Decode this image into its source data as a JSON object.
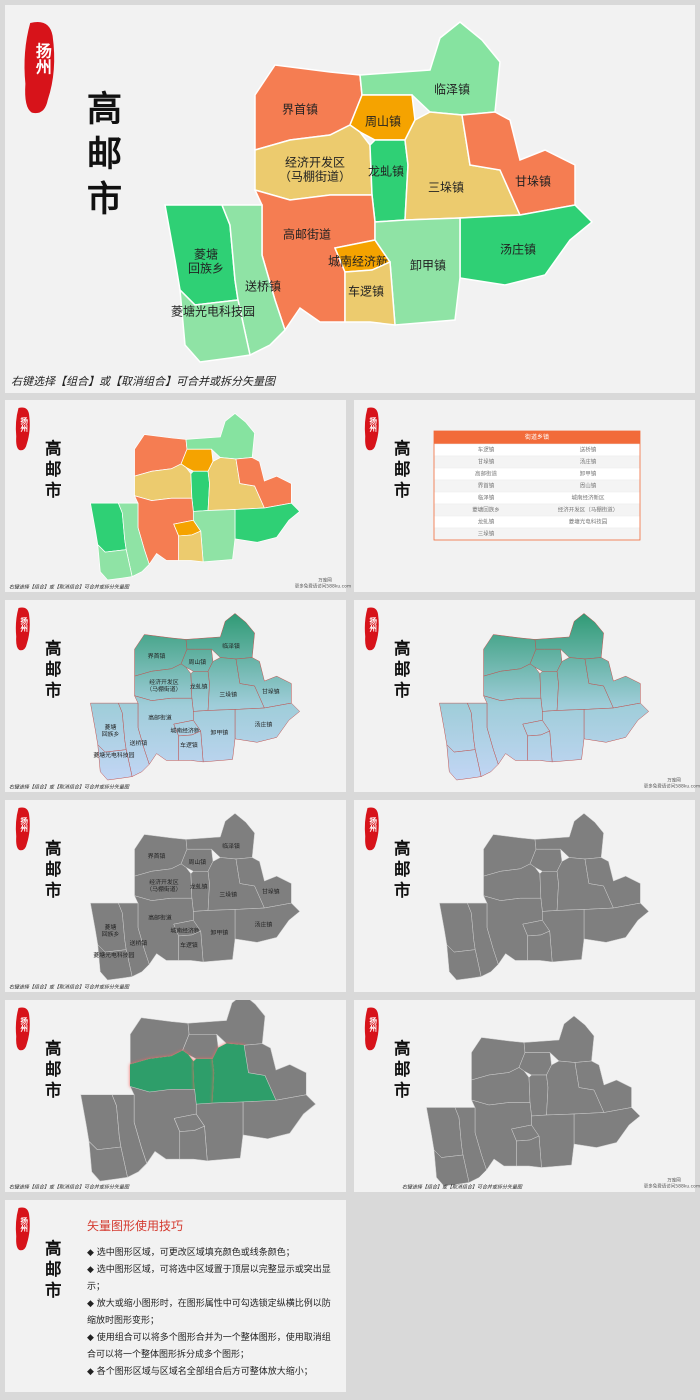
{
  "logo": "扬州",
  "city": "高邮市",
  "regions": [
    {
      "label": [
        "界首镇"
      ],
      "color": "#f57d52"
    },
    {
      "label": [
        "临泽镇"
      ],
      "color": "#86e3a0"
    },
    {
      "label": [
        "周山镇"
      ],
      "color": "#f5a300"
    },
    {
      "label": [
        "经济开发区",
        "（马棚街道）"
      ],
      "color": "#eccb6e"
    },
    {
      "label": [
        "龙虬镇"
      ],
      "color": "#2fd075"
    },
    {
      "label": [
        "三垛镇"
      ],
      "color": "#eccb6e"
    },
    {
      "label": [
        "甘垛镇"
      ],
      "color": "#f57d52"
    },
    {
      "label": [
        "汤庄镇"
      ],
      "color": "#2fd075"
    },
    {
      "label": [
        "高邮街道"
      ],
      "color": "#f57d52"
    },
    {
      "label": [
        "菱塘",
        "回族乡"
      ],
      "color": "#2fd075"
    },
    {
      "label": [
        "送桥镇"
      ],
      "color": "#8fe3a5"
    },
    {
      "label": [
        "菱塘光电科技园"
      ],
      "color": "#8fe3a5"
    },
    {
      "label": [
        "城南经济新区"
      ],
      "color": "#f5a300"
    },
    {
      "label": [
        "卸甲镇"
      ],
      "color": "#8fe3a5"
    },
    {
      "label": [
        "车逻镇"
      ],
      "color": "#eccb6e"
    }
  ],
  "caption": "右键选择【组合】或【取消组合】可合并或拆分矢量图",
  "watermark": [
    "万库网",
    "更多免费请访问588ku.com"
  ],
  "table": {
    "header": "街道乡镇",
    "rows": [
      [
        "车逻镇",
        "送桥镇"
      ],
      [
        "甘垛镇",
        "汤庄镇"
      ],
      [
        "高邮街道",
        "卸甲镇"
      ],
      [
        "界首镇",
        "周山镇"
      ],
      [
        "临泽镇",
        "城南经济新区"
      ],
      [
        "菱塘回族乡",
        "经济开发区（马棚街道）"
      ],
      [
        "龙虬镇",
        "菱塘光电科技园"
      ],
      [
        "三垛镇"
      ]
    ]
  },
  "tips": {
    "title": "矢量图形使用技巧",
    "items": [
      "◆ 选中图形区域，可更改区域填充颜色或线条颜色；",
      "◆ 选中图形区域，可将选中区域置于顶层以完整显示或突出显示；",
      "◆ 放大或缩小图形时，在图形属性中可勾选锁定纵横比例以防缩放时图形变形；",
      "◆ 使用组合可以将多个图形合并为一个整体图形，使用取消组合可以将一个整体图形拆分成多个图形；",
      "◆ 各个图形区域与区域名全部组合后方可整体放大缩小；"
    ]
  }
}
